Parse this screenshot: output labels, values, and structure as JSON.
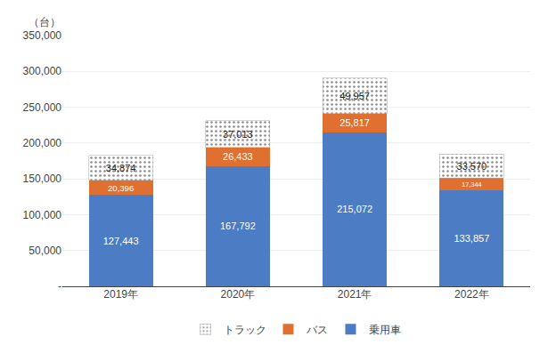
{
  "chart_data": {
    "type": "bar",
    "stacked": true,
    "ylabel": "（台）",
    "categories": [
      "2019年",
      "2020年",
      "2021年",
      "2022年"
    ],
    "series": [
      {
        "name": "乗用車",
        "color": "#4b7cc4",
        "values": [
          127443,
          167792,
          215072,
          133857
        ],
        "value_labels": [
          "127,443",
          "167,792",
          "215,072",
          "133,857"
        ]
      },
      {
        "name": "バス",
        "color": "#e07030",
        "values": [
          20396,
          26433,
          25817,
          17344
        ],
        "value_labels": [
          "20,396",
          "26,433",
          "25,817",
          "17,344"
        ]
      },
      {
        "name": "トラック",
        "color": "#c8c8c8",
        "values": [
          34874,
          37013,
          49957,
          33570
        ],
        "value_labels": [
          "34,874",
          "37,013",
          "49,957",
          "33,570"
        ]
      }
    ],
    "ylim": [
      0,
      350000
    ],
    "yticks": [
      {
        "value": 0,
        "label": "-"
      },
      {
        "value": 50000,
        "label": "50,000"
      },
      {
        "value": 100000,
        "label": "100,000"
      },
      {
        "value": 150000,
        "label": "150,000"
      },
      {
        "value": 200000,
        "label": "200,000"
      },
      {
        "value": 250000,
        "label": "250,000"
      },
      {
        "value": 300000,
        "label": "300,000"
      },
      {
        "value": 350000,
        "label": "350,000"
      }
    ],
    "grid": true,
    "legend": "bottom",
    "data_labels": true
  }
}
